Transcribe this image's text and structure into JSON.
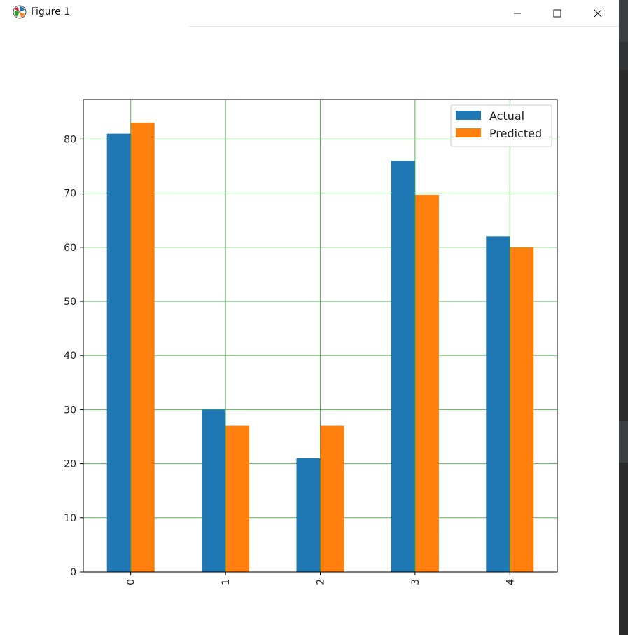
{
  "window": {
    "title": "Figure 1",
    "minimize_icon": "minimize-icon",
    "maximize_icon": "maximize-icon",
    "close_icon": "close-icon",
    "app_icon": "matplotlib-icon"
  },
  "colors": {
    "actual": "#1f77b4",
    "predicted": "#ff7f0e",
    "grid": "#2ca02c",
    "axes": "#000000"
  },
  "chart_data": {
    "type": "bar",
    "categories": [
      "0",
      "1",
      "2",
      "3",
      "4"
    ],
    "series": [
      {
        "name": "Actual",
        "values": [
          81,
          30,
          21,
          76,
          62
        ]
      },
      {
        "name": "Predicted",
        "values": [
          83,
          27,
          27,
          69.7,
          60
        ]
      }
    ],
    "title": "",
    "xlabel": "",
    "ylabel": "",
    "ylim": [
      0,
      87.3
    ],
    "yticks": [
      0,
      10,
      20,
      30,
      40,
      50,
      60,
      70,
      80
    ],
    "grid": true,
    "legend": {
      "position": "top-right",
      "entries": [
        "Actual",
        "Predicted"
      ]
    },
    "xtick_rotation": "vertical"
  }
}
